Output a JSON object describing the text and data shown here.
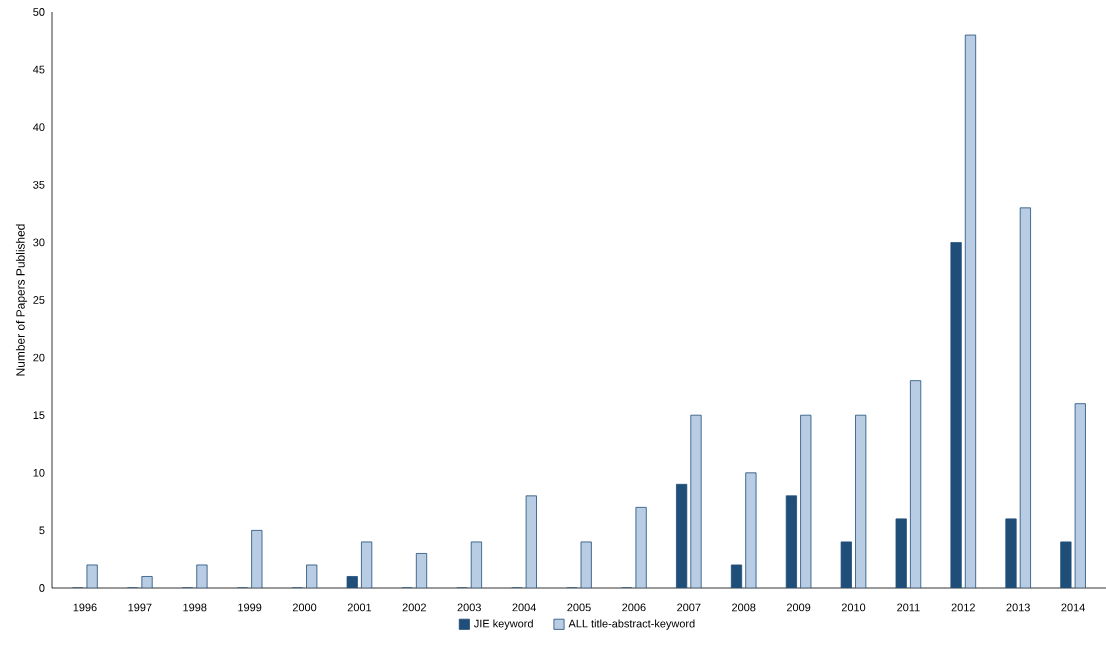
{
  "chart_data": {
    "type": "bar",
    "ylabel": "Number of Papers  Published",
    "categories": [
      "1996",
      "1997",
      "1998",
      "1999",
      "2000",
      "2001",
      "2002",
      "2003",
      "2004",
      "2005",
      "2006",
      "2007",
      "2008",
      "2009",
      "2010",
      "2011",
      "2012",
      "2013",
      "2014"
    ],
    "series": [
      {
        "name": "JIE keyword",
        "color": "#1f4e79",
        "values": [
          0,
          0,
          0,
          0,
          0,
          1,
          0,
          0,
          0,
          0,
          0,
          9,
          2,
          8,
          4,
          6,
          30,
          6,
          4
        ]
      },
      {
        "name": "ALL title-abstract-keyword",
        "color": "#b8cce4",
        "values": [
          2,
          1,
          2,
          5,
          2,
          4,
          3,
          4,
          8,
          4,
          7,
          15,
          10,
          15,
          15,
          18,
          48,
          33,
          16
        ]
      }
    ],
    "ylim": [
      0,
      50
    ],
    "yticks": [
      0,
      5,
      10,
      15,
      20,
      25,
      30,
      35,
      40,
      45,
      50
    ],
    "grid": false,
    "legend": "bottom"
  }
}
